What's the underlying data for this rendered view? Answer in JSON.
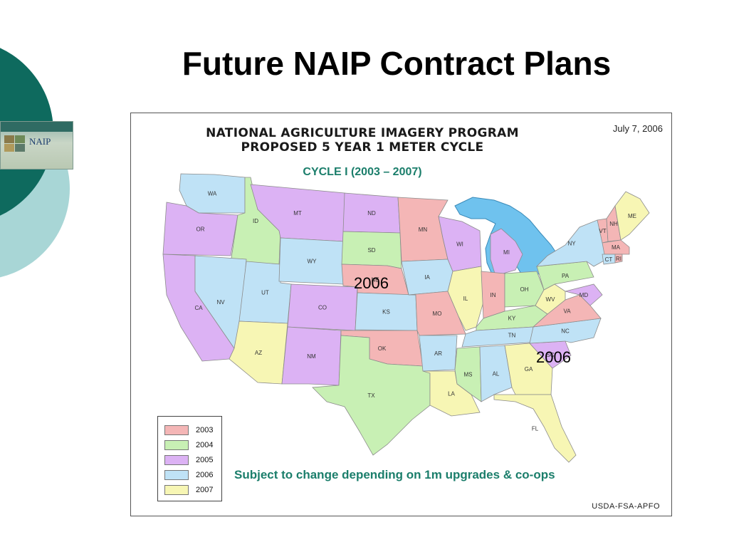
{
  "slide": {
    "title": "Future NAIP Contract Plans"
  },
  "logo": {
    "word": "NAIP"
  },
  "map": {
    "title_line1": "NATIONAL AGRICULTURE IMAGERY PROGRAM",
    "title_line2": "PROPOSED 5 YEAR 1 METER CYCLE",
    "date": "July 7, 2006",
    "cycle": "CYCLE I  (2003 – 2007)",
    "note": "Subject to change depending on 1m upgrades & co-ops",
    "credit": "USDA-FSA-APFO",
    "callout_west": "2006",
    "callout_east": "2006",
    "legend": [
      {
        "year": "2003",
        "color": "#f4b6b6"
      },
      {
        "year": "2004",
        "color": "#c8f0b4"
      },
      {
        "year": "2005",
        "color": "#dcb2f4"
      },
      {
        "year": "2006",
        "color": "#bfe2f6"
      },
      {
        "year": "2007",
        "color": "#f7f6b4"
      }
    ],
    "states": [
      {
        "abbr": "WA",
        "year": "2006"
      },
      {
        "abbr": "OR",
        "year": "2005"
      },
      {
        "abbr": "CA",
        "year": "2005"
      },
      {
        "abbr": "ID",
        "year": "2004"
      },
      {
        "abbr": "NV",
        "year": "2006"
      },
      {
        "abbr": "UT",
        "year": "2006"
      },
      {
        "abbr": "AZ",
        "year": "2007"
      },
      {
        "abbr": "MT",
        "year": "2005"
      },
      {
        "abbr": "WY",
        "year": "2006"
      },
      {
        "abbr": "CO",
        "year": "2005"
      },
      {
        "abbr": "NM",
        "year": "2005"
      },
      {
        "abbr": "ND",
        "year": "2005"
      },
      {
        "abbr": "SD",
        "year": "2004"
      },
      {
        "abbr": "NE",
        "year": "2003"
      },
      {
        "abbr": "KS",
        "year": "2006"
      },
      {
        "abbr": "OK",
        "year": "2003"
      },
      {
        "abbr": "TX",
        "year": "2004"
      },
      {
        "abbr": "MN",
        "year": "2003"
      },
      {
        "abbr": "IA",
        "year": "2006"
      },
      {
        "abbr": "MO",
        "year": "2003"
      },
      {
        "abbr": "AR",
        "year": "2006"
      },
      {
        "abbr": "LA",
        "year": "2007"
      },
      {
        "abbr": "WI",
        "year": "2005"
      },
      {
        "abbr": "IL",
        "year": "2007"
      },
      {
        "abbr": "MI",
        "year": "2005"
      },
      {
        "abbr": "IN",
        "year": "2003"
      },
      {
        "abbr": "OH",
        "year": "2004"
      },
      {
        "abbr": "KY",
        "year": "2004"
      },
      {
        "abbr": "TN",
        "year": "2006"
      },
      {
        "abbr": "MS",
        "year": "2004"
      },
      {
        "abbr": "AL",
        "year": "2006"
      },
      {
        "abbr": "GA",
        "year": "2007"
      },
      {
        "abbr": "FL",
        "year": "2007"
      },
      {
        "abbr": "SC",
        "year": "2005"
      },
      {
        "abbr": "NC",
        "year": "2006"
      },
      {
        "abbr": "VA",
        "year": "2003"
      },
      {
        "abbr": "WV",
        "year": "2007"
      },
      {
        "abbr": "PA",
        "year": "2004"
      },
      {
        "abbr": "NY",
        "year": "2006"
      },
      {
        "abbr": "MD",
        "year": "2005"
      },
      {
        "abbr": "VT",
        "year": "2003"
      },
      {
        "abbr": "NH",
        "year": "2003"
      },
      {
        "abbr": "ME",
        "year": "2007"
      },
      {
        "abbr": "MA",
        "year": "2003"
      },
      {
        "abbr": "CT",
        "year": "2006"
      },
      {
        "abbr": "RI",
        "year": "2003"
      }
    ]
  }
}
